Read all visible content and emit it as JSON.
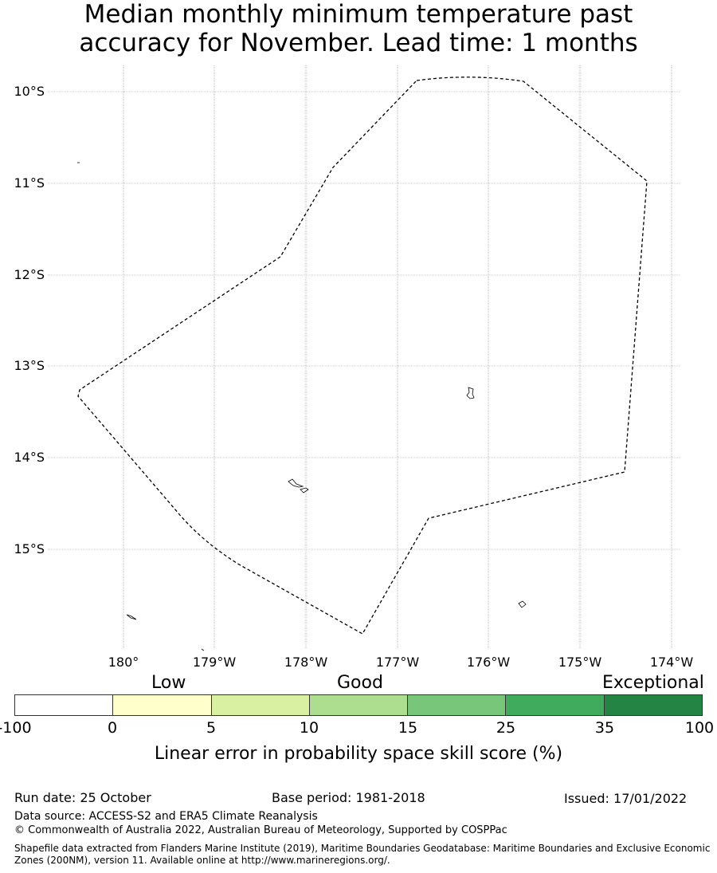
{
  "title": {
    "line1": "Median monthly minimum temperature past",
    "line2": "accuracy for November. Lead time: 1 months"
  },
  "map": {
    "lat_labels": [
      "10°S",
      "11°S",
      "12°S",
      "13°S",
      "14°S",
      "15°S"
    ],
    "lon_labels": [
      "180°",
      "179°W",
      "178°W",
      "177°W",
      "176°W",
      "175°W",
      "174°W"
    ],
    "boundary_style": "dashed",
    "grid": true,
    "line_color": "#000000",
    "grid_color": "#9a9a9a"
  },
  "colorbar": {
    "categories": [
      "Low",
      "Good",
      "Exceptional"
    ],
    "ticks": [
      "-100",
      "0",
      "5",
      "10",
      "15",
      "25",
      "35",
      "100"
    ],
    "colors": [
      "#ffffff",
      "#ffffcc",
      "#d9f0a3",
      "#addd8e",
      "#78c679",
      "#41ab5d",
      "#238443"
    ],
    "label": "Linear error in probability space skill score (%)"
  },
  "footer": {
    "run_date": "Run date: 25 October",
    "base_period": "Base period: 1981-2018",
    "issued": "Issued: 17/01/2022",
    "data_source": "Data source: ACCESS-S2 and ERA5 Climate Reanalysis",
    "copyright": "© Commonwealth of Australia 2022, Australian Bureau of Meteorology, Supported by COSPPac",
    "shapefile": "Shapefile data extracted from Flanders Marine Institute (2019), Maritime Boundaries Geodatabase: Maritime Boundaries and Exclusive Economic Zones (200NM), version 11. Available online at http://www.marineregions.org/."
  }
}
